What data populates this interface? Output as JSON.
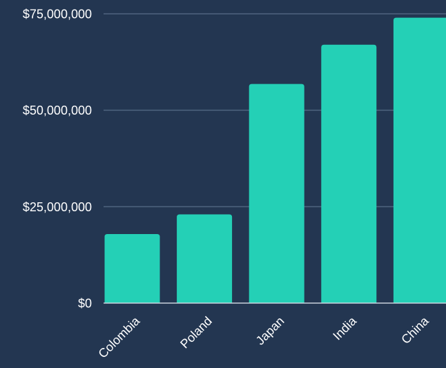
{
  "chart_data": {
    "type": "bar",
    "title": "",
    "xlabel": "",
    "ylabel": "",
    "categories": [
      "Colombia",
      "Poland",
      "Japan",
      "India",
      "China"
    ],
    "values": [
      17900000,
      23000000,
      56800000,
      67000000,
      74000000
    ],
    "ylim": [
      0,
      75000000
    ],
    "yticks": [
      0,
      25000000,
      50000000,
      75000000
    ],
    "ytick_labels": [
      "$0",
      "$25,000,000",
      "$50,000,000",
      "$75,000,000"
    ],
    "grid": true,
    "legend": "none",
    "colors": {
      "background": "#233651",
      "bar": "#24d0b6",
      "grid": "#4f6480",
      "baseline": "#c9d2dd",
      "text": "#ffffff"
    }
  }
}
